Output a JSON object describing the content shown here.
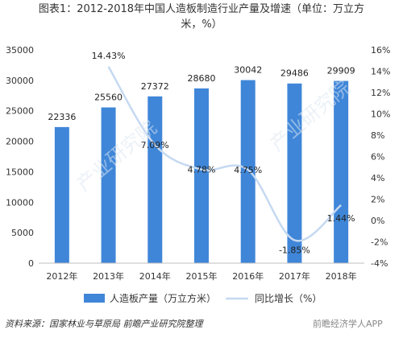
{
  "chart_data": {
    "type": "bar+line",
    "title_line1": "图表1：2012-2018年中国人造板制造行业产量及增速（单位：万立方",
    "title_line2": "米，%）",
    "categories": [
      "2012年",
      "2013年",
      "2014年",
      "2015年",
      "2016年",
      "2017年",
      "2018年"
    ],
    "series": [
      {
        "name": "人造板产量（万立方米）",
        "type": "bar",
        "axis": "left",
        "color": "#3f86d8",
        "values": [
          22336,
          25560,
          27372,
          28680,
          30042,
          29486,
          29909
        ]
      },
      {
        "name": "同比增长（%）",
        "type": "line",
        "axis": "right",
        "color": "#c5d9f1",
        "values": [
          null,
          14.43,
          7.09,
          4.78,
          4.75,
          -1.85,
          1.44
        ]
      }
    ],
    "bar_labels": [
      "22336",
      "25560",
      "27372",
      "28680",
      "30042",
      "29486",
      "29909"
    ],
    "line_labels": [
      "",
      "14.43%",
      "7.09%",
      "4.78%",
      "4.75%",
      "-1.85%",
      "1.44%"
    ],
    "left_axis": {
      "ylim": [
        0,
        35000
      ],
      "ticks": [
        "0",
        "5000",
        "10000",
        "15000",
        "20000",
        "25000",
        "30000",
        "35000"
      ]
    },
    "right_axis": {
      "ylim": [
        -4,
        16
      ],
      "ticks": [
        "-4%",
        "-2%",
        "0%",
        "2%",
        "4%",
        "6%",
        "8%",
        "10%",
        "12%",
        "14%",
        "16%"
      ]
    },
    "grid": false,
    "legend_position": "bottom",
    "legend": [
      "人造板产量（万立方米）",
      "同比增长（%）"
    ]
  },
  "source": "资料来源：国家林业与草原局 前瞻产业研究院整理",
  "watermark": "前瞻经济学人APP",
  "watermark_top": "产业研究院"
}
